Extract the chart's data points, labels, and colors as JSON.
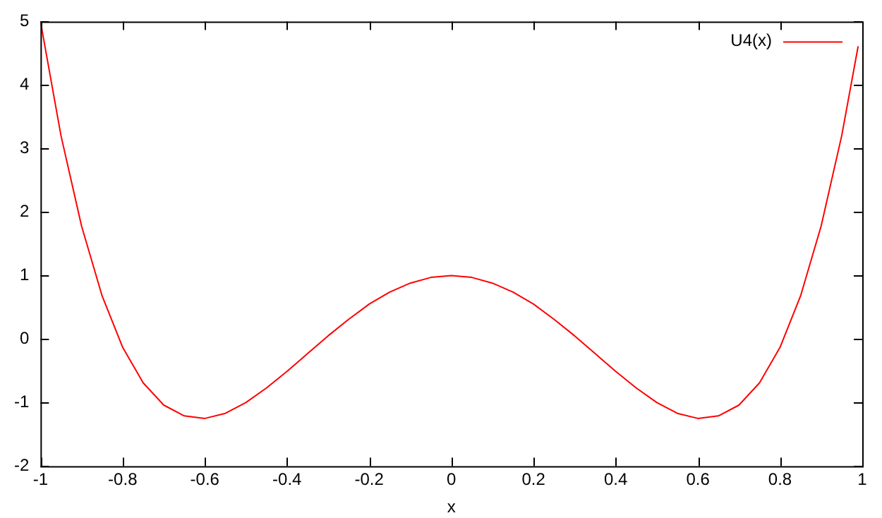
{
  "chart_data": {
    "type": "line",
    "xlabel": "x",
    "xlim": [
      -1,
      1
    ],
    "xticks": [
      -1,
      -0.8,
      -0.6,
      -0.4,
      -0.2,
      0,
      0.2,
      0.4,
      0.6,
      0.8,
      1
    ],
    "ylim": [
      -2,
      5
    ],
    "yticks": [
      -2,
      -1,
      0,
      1,
      2,
      3,
      4,
      5
    ],
    "grid": false,
    "legend": "top right",
    "marker": "none",
    "line_style": "solid",
    "series": [
      {
        "name": "U4(x)",
        "color": "#ff0000",
        "x": [
          -1,
          -0.95,
          -0.9,
          -0.85,
          -0.8,
          -0.75,
          -0.7,
          -0.65,
          -0.6,
          -0.55,
          -0.5,
          -0.45,
          -0.4,
          -0.35,
          -0.3,
          -0.25,
          -0.2,
          -0.15,
          -0.1,
          -0.05,
          0,
          0.05,
          0.1,
          0.15,
          0.2,
          0.25,
          0.3,
          0.35,
          0.4,
          0.45,
          0.5,
          0.55,
          0.6,
          0.65,
          0.7,
          0.75,
          0.8,
          0.85,
          0.9,
          0.95,
          0.99
        ],
        "values": [
          5,
          3.2,
          1.78,
          0.68,
          -0.13,
          -0.69,
          -1.04,
          -1.21,
          -1.25,
          -1.17,
          -1,
          -0.77,
          -0.51,
          -0.23,
          0.05,
          0.31,
          0.55,
          0.74,
          0.88,
          0.97,
          1,
          0.97,
          0.88,
          0.74,
          0.55,
          0.31,
          0.05,
          -0.23,
          -0.51,
          -0.77,
          -1,
          -1.17,
          -1.25,
          -1.21,
          -1.04,
          -0.69,
          -0.13,
          0.68,
          1.78,
          3.2,
          4.61
        ]
      }
    ]
  }
}
